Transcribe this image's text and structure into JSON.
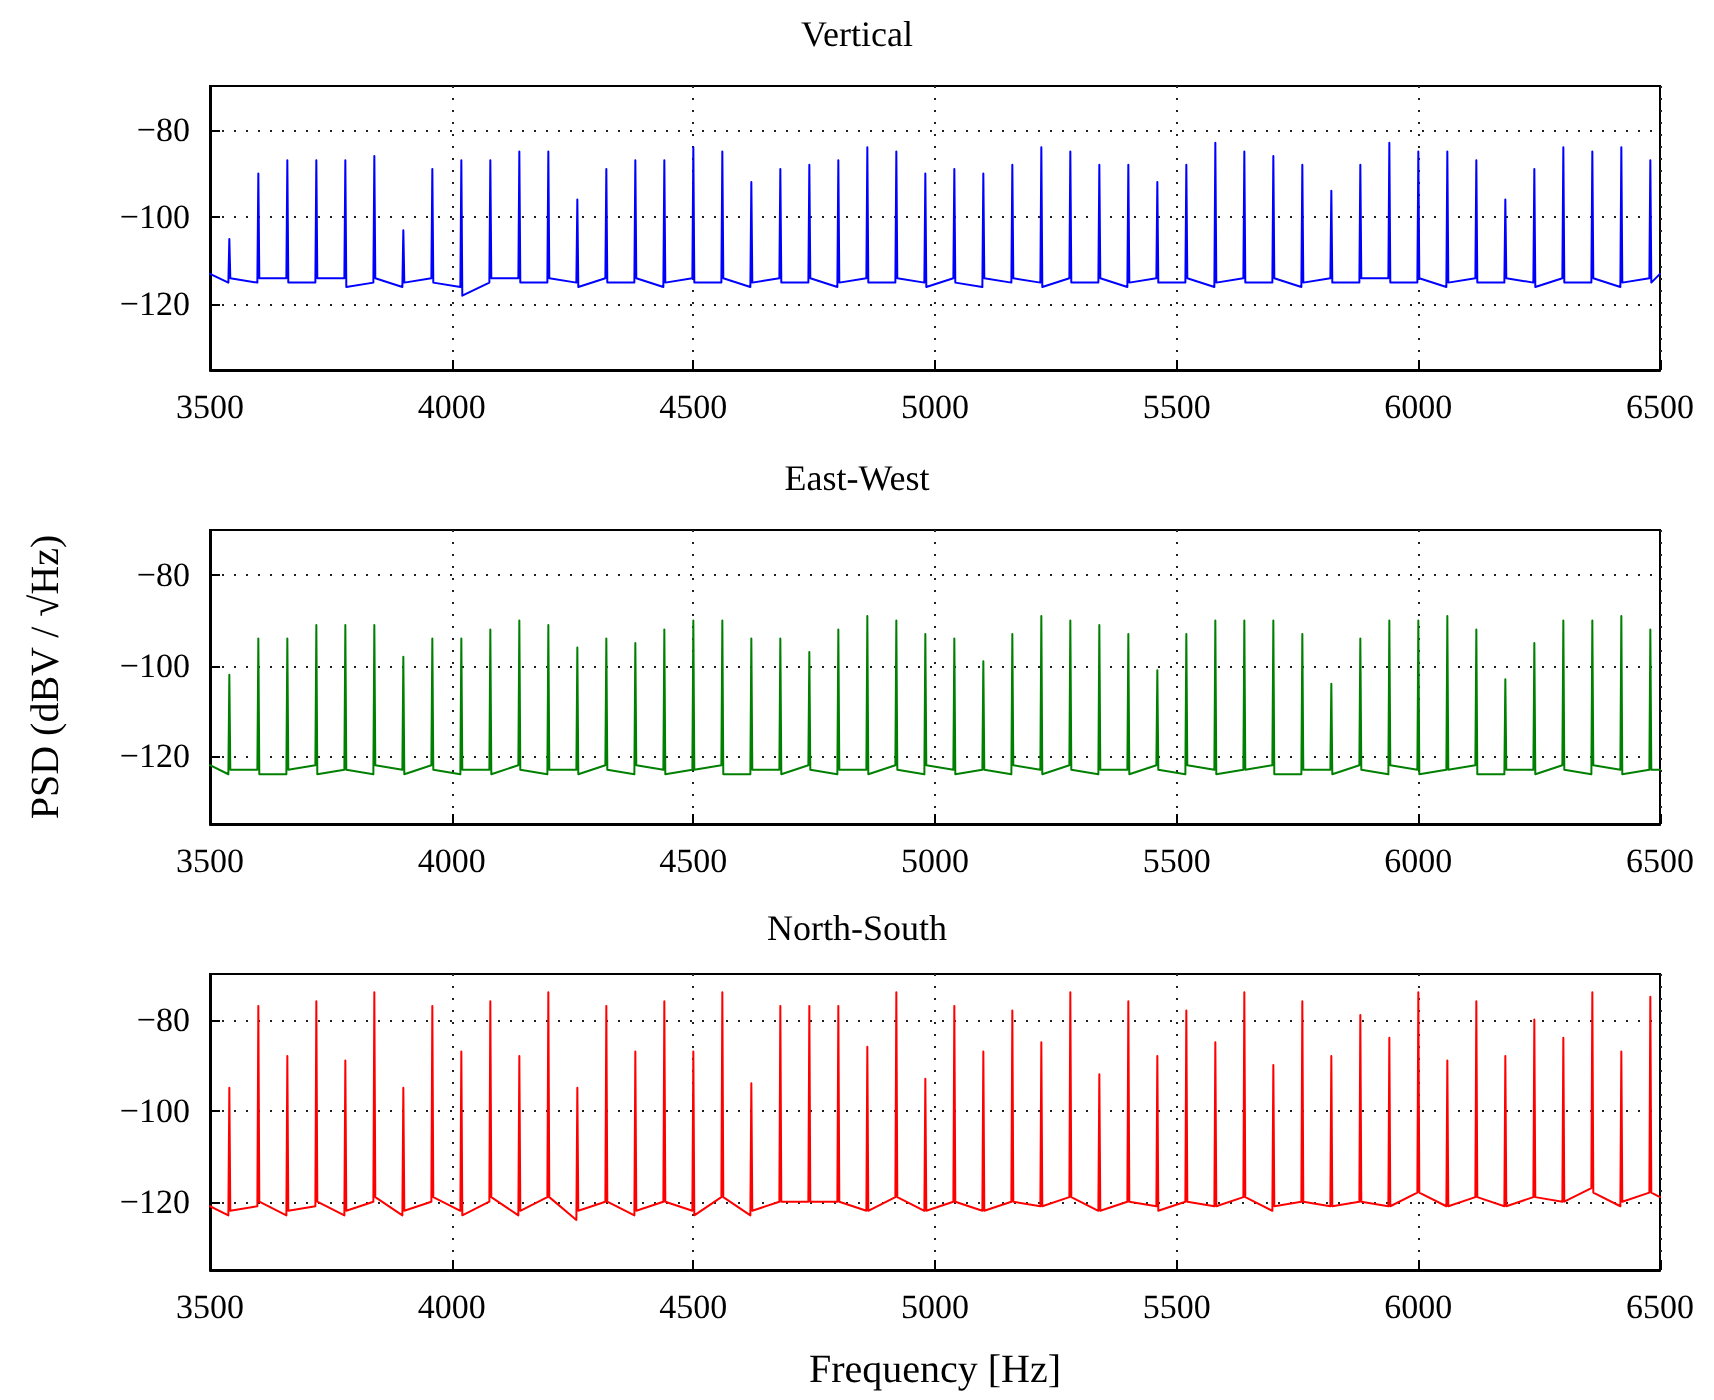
{
  "chart_data": [
    {
      "type": "line",
      "title": "Vertical",
      "xlim": [
        3500,
        6500
      ],
      "xticks": [
        3500,
        4000,
        4500,
        5000,
        5500,
        6000,
        6500
      ],
      "ylim": [
        -135,
        -70
      ],
      "yticks": [
        -120,
        -100,
        -80
      ],
      "grid": true,
      "marker": "none",
      "line_style": "solid",
      "x": [
        3500,
        3538,
        3540,
        3542,
        3598,
        3600,
        3602,
        3658,
        3660,
        3662,
        3718,
        3720,
        3722,
        3778,
        3780,
        3782,
        3838,
        3840,
        3842,
        3898,
        3900,
        3902,
        3958,
        3960,
        3962,
        4018,
        4020,
        4022,
        4078,
        4080,
        4082,
        4138,
        4140,
        4142,
        4198,
        4200,
        4202,
        4258,
        4260,
        4262,
        4318,
        4320,
        4322,
        4378,
        4380,
        4382,
        4438,
        4440,
        4442,
        4498,
        4500,
        4502,
        4558,
        4560,
        4562,
        4618,
        4620,
        4622,
        4678,
        4680,
        4682,
        4738,
        4740,
        4742,
        4798,
        4800,
        4802,
        4858,
        4860,
        4862,
        4918,
        4920,
        4922,
        4978,
        4980,
        4982,
        5038,
        5040,
        5042,
        5098,
        5100,
        5102,
        5158,
        5160,
        5162,
        5218,
        5220,
        5222,
        5278,
        5280,
        5282,
        5338,
        5340,
        5342,
        5398,
        5400,
        5402,
        5458,
        5460,
        5462,
        5518,
        5520,
        5522,
        5578,
        5580,
        5582,
        5638,
        5640,
        5642,
        5698,
        5700,
        5702,
        5758,
        5760,
        5762,
        5818,
        5820,
        5822,
        5878,
        5880,
        5882,
        5938,
        5940,
        5942,
        5998,
        6000,
        6002,
        6058,
        6060,
        6062,
        6118,
        6120,
        6122,
        6178,
        6180,
        6182,
        6238,
        6240,
        6242,
        6298,
        6300,
        6302,
        6358,
        6360,
        6362,
        6418,
        6420,
        6422,
        6478,
        6480,
        6482,
        6500
      ],
      "series": [
        {
          "color": "#0000ff",
          "values": [
            -113,
            -115,
            -105,
            -114,
            -115,
            -90,
            -114,
            -114,
            -87,
            -115,
            -115,
            -87,
            -114,
            -114,
            -87,
            -116,
            -115,
            -86,
            -114,
            -116,
            -103,
            -115,
            -114,
            -89,
            -115,
            -116,
            -87,
            -118,
            -115,
            -87,
            -114,
            -114,
            -85,
            -115,
            -115,
            -85,
            -114,
            -115,
            -96,
            -116,
            -114,
            -89,
            -115,
            -115,
            -87,
            -114,
            -116,
            -87,
            -115,
            -114,
            -84,
            -115,
            -115,
            -85,
            -114,
            -116,
            -92,
            -115,
            -114,
            -89,
            -115,
            -115,
            -88,
            -114,
            -116,
            -87,
            -115,
            -114,
            -84,
            -115,
            -115,
            -85,
            -114,
            -115,
            -90,
            -116,
            -114,
            -89,
            -115,
            -116,
            -90,
            -114,
            -115,
            -88,
            -114,
            -115,
            -84,
            -116,
            -114,
            -85,
            -115,
            -115,
            -88,
            -114,
            -116,
            -88,
            -115,
            -114,
            -92,
            -115,
            -115,
            -88,
            -114,
            -116,
            -83,
            -115,
            -114,
            -85,
            -115,
            -115,
            -86,
            -114,
            -116,
            -88,
            -115,
            -114,
            -94,
            -115,
            -115,
            -88,
            -114,
            -114,
            -83,
            -115,
            -115,
            -85,
            -114,
            -116,
            -85,
            -115,
            -114,
            -87,
            -115,
            -115,
            -96,
            -114,
            -115,
            -89,
            -116,
            -114,
            -84,
            -115,
            -115,
            -85,
            -114,
            -116,
            -84,
            -115,
            -114,
            -87,
            -115,
            -113
          ]
        }
      ]
    },
    {
      "type": "line",
      "title": "East-West",
      "ylabel": "PSD (dBV / √Hz)",
      "xlim": [
        3500,
        6500
      ],
      "xticks": [
        3500,
        4000,
        4500,
        5000,
        5500,
        6000,
        6500
      ],
      "ylim": [
        -135,
        -70
      ],
      "yticks": [
        -120,
        -100,
        -80
      ],
      "grid": true,
      "marker": "none",
      "line_style": "solid",
      "x": [
        3500,
        3538,
        3540,
        3542,
        3598,
        3600,
        3602,
        3658,
        3660,
        3662,
        3718,
        3720,
        3722,
        3778,
        3780,
        3782,
        3838,
        3840,
        3842,
        3898,
        3900,
        3902,
        3958,
        3960,
        3962,
        4018,
        4020,
        4022,
        4078,
        4080,
        4082,
        4138,
        4140,
        4142,
        4198,
        4200,
        4202,
        4258,
        4260,
        4262,
        4318,
        4320,
        4322,
        4378,
        4380,
        4382,
        4438,
        4440,
        4442,
        4498,
        4500,
        4502,
        4558,
        4560,
        4562,
        4618,
        4620,
        4622,
        4678,
        4680,
        4682,
        4738,
        4740,
        4742,
        4798,
        4800,
        4802,
        4858,
        4860,
        4862,
        4918,
        4920,
        4922,
        4978,
        4980,
        4982,
        5038,
        5040,
        5042,
        5098,
        5100,
        5102,
        5158,
        5160,
        5162,
        5218,
        5220,
        5222,
        5278,
        5280,
        5282,
        5338,
        5340,
        5342,
        5398,
        5400,
        5402,
        5458,
        5460,
        5462,
        5518,
        5520,
        5522,
        5578,
        5580,
        5582,
        5638,
        5640,
        5642,
        5698,
        5700,
        5702,
        5758,
        5760,
        5762,
        5818,
        5820,
        5822,
        5878,
        5880,
        5882,
        5938,
        5940,
        5942,
        5998,
        6000,
        6002,
        6058,
        6060,
        6062,
        6118,
        6120,
        6122,
        6178,
        6180,
        6182,
        6238,
        6240,
        6242,
        6298,
        6300,
        6302,
        6358,
        6360,
        6362,
        6418,
        6420,
        6422,
        6478,
        6480,
        6482,
        6500
      ],
      "series": [
        {
          "color": "#008000",
          "values": [
            -122,
            -124,
            -102,
            -123,
            -123,
            -94,
            -124,
            -124,
            -94,
            -123,
            -122,
            -91,
            -124,
            -123,
            -91,
            -123,
            -124,
            -91,
            -122,
            -123,
            -98,
            -124,
            -122,
            -94,
            -123,
            -124,
            -94,
            -123,
            -123,
            -92,
            -124,
            -122,
            -90,
            -123,
            -124,
            -91,
            -123,
            -123,
            -96,
            -124,
            -122,
            -94,
            -123,
            -124,
            -95,
            -122,
            -123,
            -92,
            -124,
            -123,
            -90,
            -123,
            -122,
            -90,
            -124,
            -124,
            -94,
            -123,
            -123,
            -94,
            -124,
            -122,
            -97,
            -123,
            -124,
            -92,
            -123,
            -123,
            -89,
            -124,
            -122,
            -90,
            -123,
            -124,
            -93,
            -122,
            -123,
            -94,
            -124,
            -123,
            -99,
            -123,
            -124,
            -93,
            -122,
            -123,
            -89,
            -124,
            -122,
            -90,
            -123,
            -124,
            -91,
            -123,
            -123,
            -93,
            -124,
            -122,
            -101,
            -123,
            -124,
            -93,
            -122,
            -123,
            -90,
            -124,
            -123,
            -90,
            -123,
            -122,
            -90,
            -124,
            -124,
            -93,
            -123,
            -123,
            -104,
            -124,
            -122,
            -94,
            -123,
            -124,
            -90,
            -122,
            -123,
            -90,
            -124,
            -123,
            -89,
            -123,
            -122,
            -92,
            -124,
            -124,
            -103,
            -123,
            -123,
            -95,
            -124,
            -122,
            -90,
            -123,
            -124,
            -90,
            -122,
            -123,
            -89,
            -124,
            -123,
            -92,
            -123,
            -123
          ]
        }
      ]
    },
    {
      "type": "line",
      "title": "North-South",
      "xlabel": "Frequency [Hz]",
      "xlim": [
        3500,
        6500
      ],
      "xticks": [
        3500,
        4000,
        4500,
        5000,
        5500,
        6000,
        6500
      ],
      "ylim": [
        -135,
        -70
      ],
      "yticks": [
        -120,
        -100,
        -80
      ],
      "grid": true,
      "marker": "none",
      "line_style": "solid",
      "x": [
        3500,
        3538,
        3540,
        3542,
        3598,
        3600,
        3602,
        3658,
        3660,
        3662,
        3718,
        3720,
        3722,
        3778,
        3780,
        3782,
        3838,
        3840,
        3842,
        3898,
        3900,
        3902,
        3958,
        3960,
        3962,
        4018,
        4020,
        4022,
        4078,
        4080,
        4082,
        4138,
        4140,
        4142,
        4198,
        4200,
        4202,
        4258,
        4260,
        4262,
        4318,
        4320,
        4322,
        4378,
        4380,
        4382,
        4438,
        4440,
        4442,
        4498,
        4500,
        4502,
        4558,
        4560,
        4562,
        4618,
        4620,
        4622,
        4678,
        4680,
        4682,
        4738,
        4740,
        4742,
        4798,
        4800,
        4802,
        4858,
        4860,
        4862,
        4918,
        4920,
        4922,
        4978,
        4980,
        4982,
        5038,
        5040,
        5042,
        5098,
        5100,
        5102,
        5158,
        5160,
        5162,
        5218,
        5220,
        5222,
        5278,
        5280,
        5282,
        5338,
        5340,
        5342,
        5398,
        5400,
        5402,
        5458,
        5460,
        5462,
        5518,
        5520,
        5522,
        5578,
        5580,
        5582,
        5638,
        5640,
        5642,
        5698,
        5700,
        5702,
        5758,
        5760,
        5762,
        5818,
        5820,
        5822,
        5878,
        5880,
        5882,
        5938,
        5940,
        5942,
        5998,
        6000,
        6002,
        6058,
        6060,
        6062,
        6118,
        6120,
        6122,
        6178,
        6180,
        6182,
        6238,
        6240,
        6242,
        6298,
        6300,
        6302,
        6358,
        6360,
        6362,
        6418,
        6420,
        6422,
        6478,
        6480,
        6482,
        6500
      ],
      "series": [
        {
          "color": "#ff0000",
          "values": [
            -121,
            -123,
            -95,
            -122,
            -121,
            -77,
            -120,
            -123,
            -88,
            -122,
            -121,
            -76,
            -120,
            -123,
            -89,
            -122,
            -120,
            -74,
            -119,
            -123,
            -95,
            -122,
            -120,
            -77,
            -119,
            -122,
            -87,
            -123,
            -120,
            -76,
            -119,
            -123,
            -88,
            -122,
            -119,
            -74,
            -119,
            -124,
            -95,
            -122,
            -120,
            -77,
            -120,
            -123,
            -87,
            -122,
            -120,
            -76,
            -120,
            -122,
            -87,
            -123,
            -119,
            -74,
            -119,
            -123,
            -94,
            -122,
            -120,
            -77,
            -120,
            -120,
            -77,
            -120,
            -120,
            -77,
            -120,
            -122,
            -86,
            -122,
            -119,
            -74,
            -119,
            -122,
            -93,
            -122,
            -120,
            -77,
            -120,
            -122,
            -87,
            -122,
            -120,
            -78,
            -120,
            -121,
            -85,
            -121,
            -119,
            -74,
            -119,
            -122,
            -92,
            -122,
            -120,
            -76,
            -120,
            -121,
            -88,
            -122,
            -120,
            -78,
            -120,
            -121,
            -85,
            -121,
            -119,
            -74,
            -119,
            -122,
            -90,
            -121,
            -120,
            -76,
            -120,
            -121,
            -88,
            -121,
            -120,
            -79,
            -120,
            -121,
            -84,
            -121,
            -118,
            -74,
            -118,
            -121,
            -89,
            -121,
            -119,
            -76,
            -119,
            -121,
            -88,
            -121,
            -119,
            -80,
            -119,
            -120,
            -84,
            -120,
            -117,
            -74,
            -118,
            -121,
            -87,
            -120,
            -118,
            -75,
            -118,
            -119
          ]
        }
      ]
    }
  ]
}
